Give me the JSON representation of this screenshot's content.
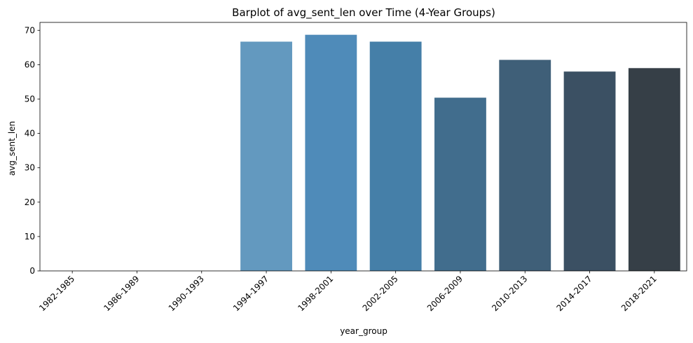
{
  "chart_data": {
    "type": "bar",
    "title": "Barplot of avg_sent_len over Time (4-Year Groups)",
    "xlabel": "year_group",
    "ylabel": "avg_sent_len",
    "categories": [
      "1982-1985",
      "1986-1989",
      "1990-1993",
      "1994-1997",
      "1998-2001",
      "2002-2005",
      "2006-2009",
      "2010-2013",
      "2014-2017",
      "2018-2021"
    ],
    "values": [
      0,
      0,
      0,
      66.7,
      68.7,
      66.7,
      50.4,
      61.4,
      58.0,
      59.0
    ],
    "colors": [
      "#7aaed2",
      "#70a6cd",
      "#689ac0",
      "#6399bf",
      "#4f8bb9",
      "#457fa8",
      "#416d8d",
      "#3f5f78",
      "#3b5063",
      "#363f47"
    ],
    "ylim": [
      0,
      72.3
    ],
    "yticks": [
      0,
      10,
      20,
      30,
      40,
      50,
      60,
      70
    ],
    "grid": false,
    "legend": "none"
  }
}
